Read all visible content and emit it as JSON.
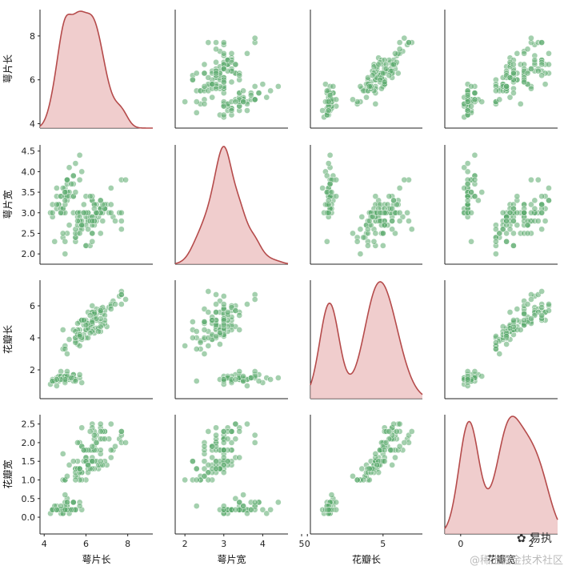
{
  "chart_data": {
    "type": "pairplot",
    "variables": [
      "萼片长",
      "萼片宽",
      "花瓣长",
      "花瓣宽"
    ],
    "diag_kind": "kde",
    "colors": {
      "scatter_fill": "#5aa96b",
      "kde_line": "#b54b4b",
      "kde_fill": "#e9b8b8",
      "axis": "#222222"
    },
    "ranges": [
      [
        3.8,
        9.2
      ],
      [
        1.75,
        4.65
      ],
      [
        0.2,
        7.6
      ],
      [
        -0.45,
        2.75
      ]
    ],
    "ticks": [
      [
        "4",
        "6",
        "8"
      ],
      [
        "2.0",
        "2.5",
        "3.0",
        "3.5",
        "4.0",
        "4.5"
      ],
      [
        "2",
        "4",
        "6"
      ],
      [
        "0.0",
        "0.5",
        "1.0",
        "1.5",
        "2.0",
        "2.5"
      ]
    ],
    "ticks_bottom": [
      [
        "4",
        "6",
        "8"
      ],
      [
        "2",
        "3",
        "4",
        "5"
      ],
      [
        "0",
        "5"
      ],
      [
        "0",
        "2"
      ]
    ],
    "ylabels_left": [
      "萼片长",
      "萼片宽",
      "花瓣长",
      "花瓣宽"
    ],
    "xlabels_bottom": [
      "萼片长",
      "萼片宽",
      "花瓣长",
      "花瓣宽"
    ],
    "samples": [
      [
        5.1,
        3.5,
        1.4,
        0.2
      ],
      [
        4.9,
        3.0,
        1.4,
        0.2
      ],
      [
        4.7,
        3.2,
        1.3,
        0.2
      ],
      [
        4.6,
        3.1,
        1.5,
        0.2
      ],
      [
        5.0,
        3.6,
        1.4,
        0.2
      ],
      [
        5.4,
        3.9,
        1.7,
        0.4
      ],
      [
        4.6,
        3.4,
        1.4,
        0.3
      ],
      [
        5.0,
        3.4,
        1.5,
        0.2
      ],
      [
        4.4,
        2.9,
        1.4,
        0.2
      ],
      [
        4.9,
        3.1,
        1.5,
        0.1
      ],
      [
        5.4,
        3.7,
        1.5,
        0.2
      ],
      [
        4.8,
        3.4,
        1.6,
        0.2
      ],
      [
        4.8,
        3.0,
        1.4,
        0.1
      ],
      [
        4.3,
        3.0,
        1.1,
        0.1
      ],
      [
        5.8,
        4.0,
        1.2,
        0.2
      ],
      [
        5.7,
        4.4,
        1.5,
        0.4
      ],
      [
        5.4,
        3.9,
        1.3,
        0.4
      ],
      [
        5.1,
        3.5,
        1.4,
        0.3
      ],
      [
        5.7,
        3.8,
        1.7,
        0.3
      ],
      [
        5.1,
        3.8,
        1.5,
        0.3
      ],
      [
        5.4,
        3.4,
        1.7,
        0.2
      ],
      [
        5.1,
        3.7,
        1.5,
        0.4
      ],
      [
        4.6,
        3.6,
        1.0,
        0.2
      ],
      [
        5.1,
        3.3,
        1.7,
        0.5
      ],
      [
        4.8,
        3.4,
        1.9,
        0.2
      ],
      [
        5.0,
        3.0,
        1.6,
        0.2
      ],
      [
        5.0,
        3.4,
        1.6,
        0.4
      ],
      [
        5.2,
        3.5,
        1.5,
        0.2
      ],
      [
        5.2,
        3.4,
        1.4,
        0.2
      ],
      [
        4.7,
        3.2,
        1.6,
        0.2
      ],
      [
        4.8,
        3.1,
        1.6,
        0.2
      ],
      [
        5.4,
        3.4,
        1.5,
        0.4
      ],
      [
        5.2,
        4.1,
        1.5,
        0.1
      ],
      [
        5.5,
        4.2,
        1.4,
        0.2
      ],
      [
        4.9,
        3.1,
        1.5,
        0.2
      ],
      [
        5.0,
        3.2,
        1.2,
        0.2
      ],
      [
        5.5,
        3.5,
        1.3,
        0.2
      ],
      [
        4.9,
        3.6,
        1.4,
        0.1
      ],
      [
        4.4,
        3.0,
        1.3,
        0.2
      ],
      [
        5.1,
        3.4,
        1.5,
        0.2
      ],
      [
        5.0,
        3.5,
        1.3,
        0.3
      ],
      [
        4.5,
        2.3,
        1.3,
        0.3
      ],
      [
        4.4,
        3.2,
        1.3,
        0.2
      ],
      [
        5.0,
        3.5,
        1.6,
        0.6
      ],
      [
        5.1,
        3.8,
        1.9,
        0.4
      ],
      [
        4.8,
        3.0,
        1.4,
        0.3
      ],
      [
        5.1,
        3.8,
        1.6,
        0.2
      ],
      [
        4.6,
        3.2,
        1.4,
        0.2
      ],
      [
        5.3,
        3.7,
        1.5,
        0.2
      ],
      [
        5.0,
        3.3,
        1.4,
        0.2
      ],
      [
        7.0,
        3.2,
        4.7,
        1.4
      ],
      [
        6.4,
        3.2,
        4.5,
        1.5
      ],
      [
        6.9,
        3.1,
        4.9,
        1.5
      ],
      [
        5.5,
        2.3,
        4.0,
        1.3
      ],
      [
        6.5,
        2.8,
        4.6,
        1.5
      ],
      [
        5.7,
        2.8,
        4.5,
        1.3
      ],
      [
        6.3,
        3.3,
        4.7,
        1.6
      ],
      [
        4.9,
        2.4,
        3.3,
        1.0
      ],
      [
        6.6,
        2.9,
        4.6,
        1.3
      ],
      [
        5.2,
        2.7,
        3.9,
        1.4
      ],
      [
        5.0,
        2.0,
        3.5,
        1.0
      ],
      [
        5.9,
        3.0,
        4.2,
        1.5
      ],
      [
        6.0,
        2.2,
        4.0,
        1.0
      ],
      [
        6.1,
        2.9,
        4.7,
        1.4
      ],
      [
        5.6,
        2.9,
        3.6,
        1.3
      ],
      [
        6.7,
        3.1,
        4.4,
        1.4
      ],
      [
        5.6,
        3.0,
        4.5,
        1.5
      ],
      [
        5.8,
        2.7,
        4.1,
        1.0
      ],
      [
        6.2,
        2.2,
        4.5,
        1.5
      ],
      [
        5.6,
        2.5,
        3.9,
        1.1
      ],
      [
        5.9,
        3.2,
        4.8,
        1.8
      ],
      [
        6.1,
        2.8,
        4.0,
        1.3
      ],
      [
        6.3,
        2.5,
        4.9,
        1.5
      ],
      [
        6.1,
        2.8,
        4.7,
        1.2
      ],
      [
        6.4,
        2.9,
        4.3,
        1.3
      ],
      [
        6.6,
        3.0,
        4.4,
        1.4
      ],
      [
        6.8,
        2.8,
        4.8,
        1.4
      ],
      [
        6.7,
        3.0,
        5.0,
        1.7
      ],
      [
        6.0,
        2.9,
        4.5,
        1.5
      ],
      [
        5.7,
        2.6,
        3.5,
        1.0
      ],
      [
        5.5,
        2.4,
        3.8,
        1.1
      ],
      [
        5.5,
        2.4,
        3.7,
        1.0
      ],
      [
        5.8,
        2.7,
        3.9,
        1.2
      ],
      [
        6.0,
        2.7,
        5.1,
        1.6
      ],
      [
        5.4,
        3.0,
        4.5,
        1.5
      ],
      [
        6.0,
        3.4,
        4.5,
        1.6
      ],
      [
        6.7,
        3.1,
        4.7,
        1.5
      ],
      [
        6.3,
        2.3,
        4.4,
        1.3
      ],
      [
        5.6,
        3.0,
        4.1,
        1.3
      ],
      [
        5.5,
        2.5,
        4.0,
        1.3
      ],
      [
        5.5,
        2.6,
        4.4,
        1.2
      ],
      [
        6.1,
        3.0,
        4.6,
        1.4
      ],
      [
        5.8,
        2.6,
        4.0,
        1.2
      ],
      [
        5.0,
        2.3,
        3.3,
        1.0
      ],
      [
        5.6,
        2.7,
        4.2,
        1.3
      ],
      [
        5.7,
        3.0,
        4.2,
        1.2
      ],
      [
        5.7,
        2.9,
        4.2,
        1.3
      ],
      [
        6.2,
        2.9,
        4.3,
        1.3
      ],
      [
        5.1,
        2.5,
        3.0,
        1.1
      ],
      [
        5.7,
        2.8,
        4.1,
        1.3
      ],
      [
        6.3,
        3.3,
        6.0,
        2.5
      ],
      [
        5.8,
        2.7,
        5.1,
        1.9
      ],
      [
        7.1,
        3.0,
        5.9,
        2.1
      ],
      [
        6.3,
        2.9,
        5.6,
        1.8
      ],
      [
        6.5,
        3.0,
        5.8,
        2.2
      ],
      [
        7.6,
        3.0,
        6.6,
        2.1
      ],
      [
        4.9,
        2.5,
        4.5,
        1.7
      ],
      [
        7.3,
        2.9,
        6.3,
        1.8
      ],
      [
        6.7,
        2.5,
        5.8,
        1.8
      ],
      [
        7.2,
        3.6,
        6.1,
        2.5
      ],
      [
        6.5,
        3.2,
        5.1,
        2.0
      ],
      [
        6.4,
        2.7,
        5.3,
        1.9
      ],
      [
        6.8,
        3.0,
        5.5,
        2.1
      ],
      [
        5.7,
        2.5,
        5.0,
        2.0
      ],
      [
        5.8,
        2.8,
        5.1,
        2.4
      ],
      [
        6.4,
        3.2,
        5.3,
        2.3
      ],
      [
        6.5,
        3.0,
        5.5,
        1.8
      ],
      [
        7.7,
        3.8,
        6.7,
        2.2
      ],
      [
        7.7,
        2.6,
        6.9,
        2.3
      ],
      [
        6.0,
        2.2,
        5.0,
        1.5
      ],
      [
        6.9,
        3.2,
        5.7,
        2.3
      ],
      [
        5.6,
        2.8,
        4.9,
        2.0
      ],
      [
        7.7,
        2.8,
        6.7,
        2.0
      ],
      [
        6.3,
        2.7,
        4.9,
        1.8
      ],
      [
        6.7,
        3.3,
        5.7,
        2.1
      ],
      [
        7.2,
        3.2,
        6.0,
        1.8
      ],
      [
        6.2,
        2.8,
        4.8,
        1.8
      ],
      [
        6.1,
        3.0,
        4.9,
        1.8
      ],
      [
        6.4,
        2.8,
        5.6,
        2.1
      ],
      [
        7.2,
        3.0,
        5.8,
        1.6
      ],
      [
        7.4,
        2.8,
        6.1,
        1.9
      ],
      [
        7.9,
        3.8,
        6.4,
        2.0
      ],
      [
        6.4,
        2.8,
        5.6,
        2.2
      ],
      [
        6.3,
        2.8,
        5.1,
        1.5
      ],
      [
        6.1,
        2.6,
        5.6,
        1.4
      ],
      [
        7.7,
        3.0,
        6.1,
        2.3
      ],
      [
        6.3,
        3.4,
        5.6,
        2.4
      ],
      [
        6.4,
        3.1,
        5.5,
        1.8
      ],
      [
        6.0,
        3.0,
        4.8,
        1.8
      ],
      [
        6.9,
        3.1,
        5.4,
        2.1
      ],
      [
        6.7,
        3.1,
        5.6,
        2.4
      ],
      [
        6.9,
        3.1,
        5.1,
        2.3
      ],
      [
        5.8,
        2.7,
        5.1,
        1.9
      ],
      [
        6.8,
        3.2,
        5.9,
        2.3
      ],
      [
        6.7,
        3.3,
        5.7,
        2.5
      ],
      [
        6.7,
        3.0,
        5.2,
        2.3
      ],
      [
        6.3,
        2.5,
        5.0,
        1.9
      ],
      [
        6.5,
        3.0,
        5.2,
        2.0
      ],
      [
        6.2,
        3.4,
        5.4,
        2.3
      ],
      [
        5.9,
        3.0,
        5.1,
        1.8
      ]
    ]
  },
  "watermark": {
    "logo_text": "易执",
    "site_text": "@稀土掘金技术社区"
  }
}
